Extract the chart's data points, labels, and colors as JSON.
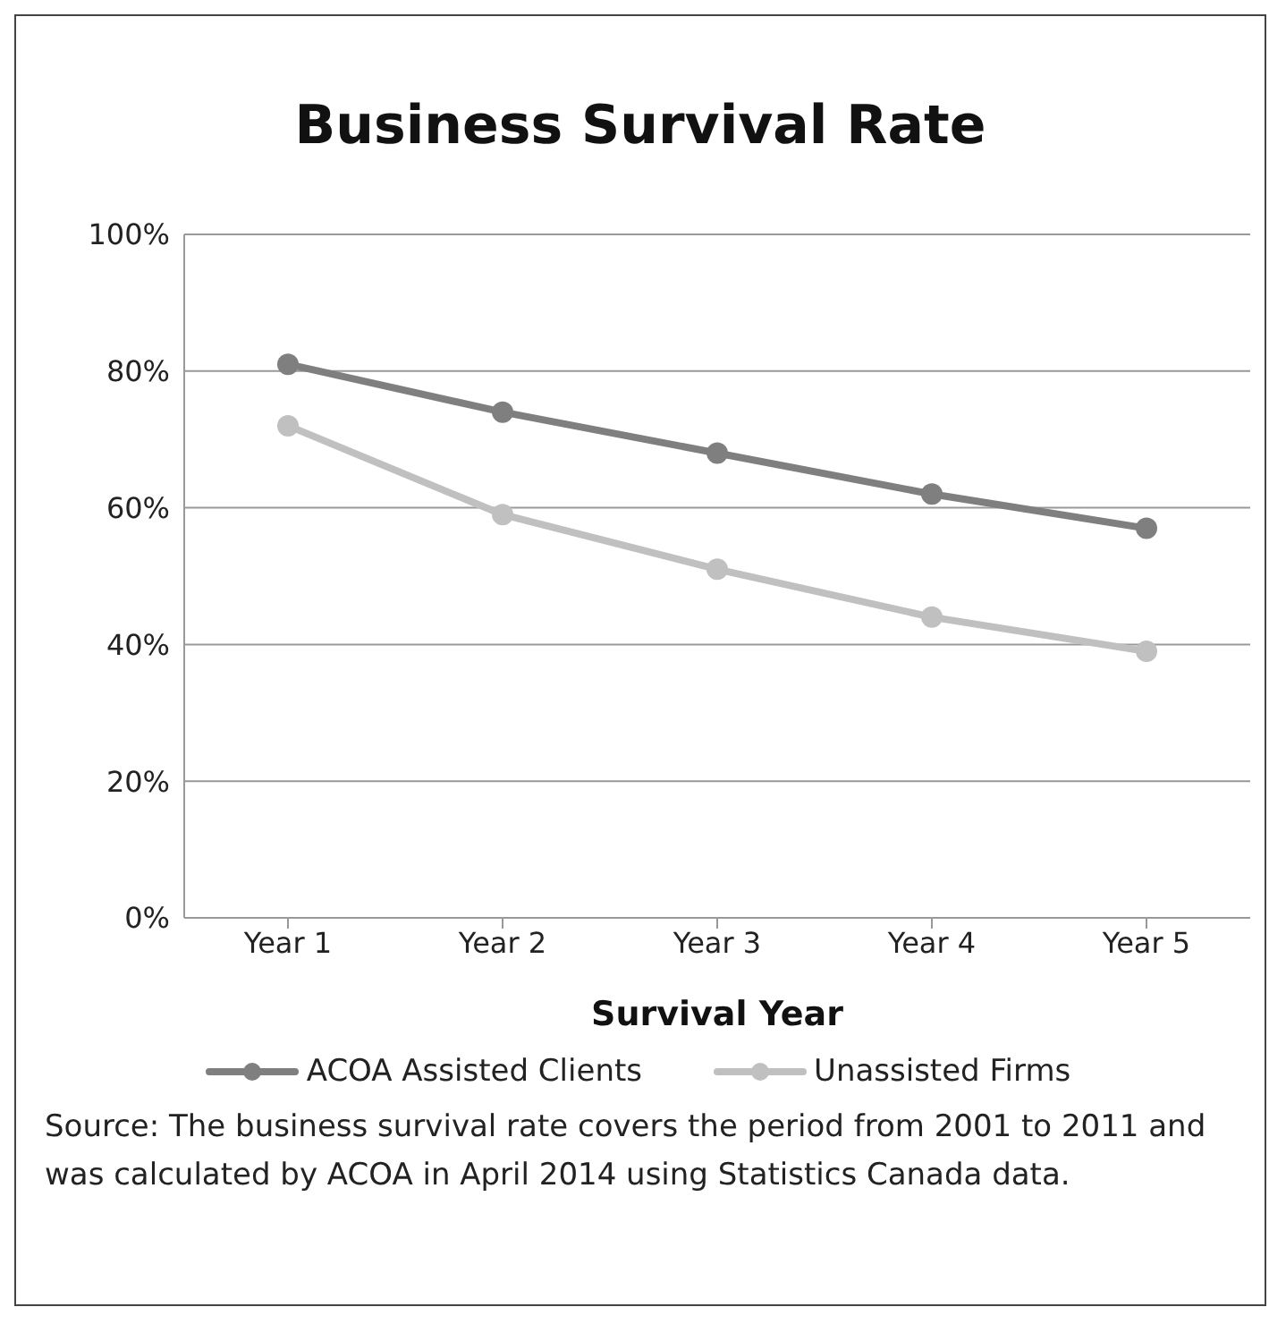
{
  "chart_data": {
    "type": "line",
    "title": "Business Survival Rate",
    "xlabel": "Survival Year",
    "categories": [
      "Year 1",
      "Year 2",
      "Year 3",
      "Year 4",
      "Year 5"
    ],
    "series": [
      {
        "name": "ACOA Assisted Clients",
        "color": "#7f7f7f",
        "values": [
          81,
          74,
          68,
          62,
          57
        ]
      },
      {
        "name": "Unassisted Firms",
        "color": "#c0c0c0",
        "values": [
          72,
          59,
          51,
          44,
          39
        ]
      }
    ],
    "ylim": [
      0,
      100
    ],
    "yticks": [
      {
        "value": 0,
        "label": "0%"
      },
      {
        "value": 20,
        "label": "20%"
      },
      {
        "value": 40,
        "label": "40%"
      },
      {
        "value": 60,
        "label": "60%"
      },
      {
        "value": 80,
        "label": "80%"
      },
      {
        "value": 100,
        "label": "100%"
      }
    ],
    "grid": "y",
    "legend": "bottom",
    "marker": "circle",
    "line_style": "solid",
    "annotations": [
      "Source: The business survival rate covers the period from 2001  to 2011  and was calculated by ACOA in April 2014  using Statistics Canada data."
    ]
  }
}
